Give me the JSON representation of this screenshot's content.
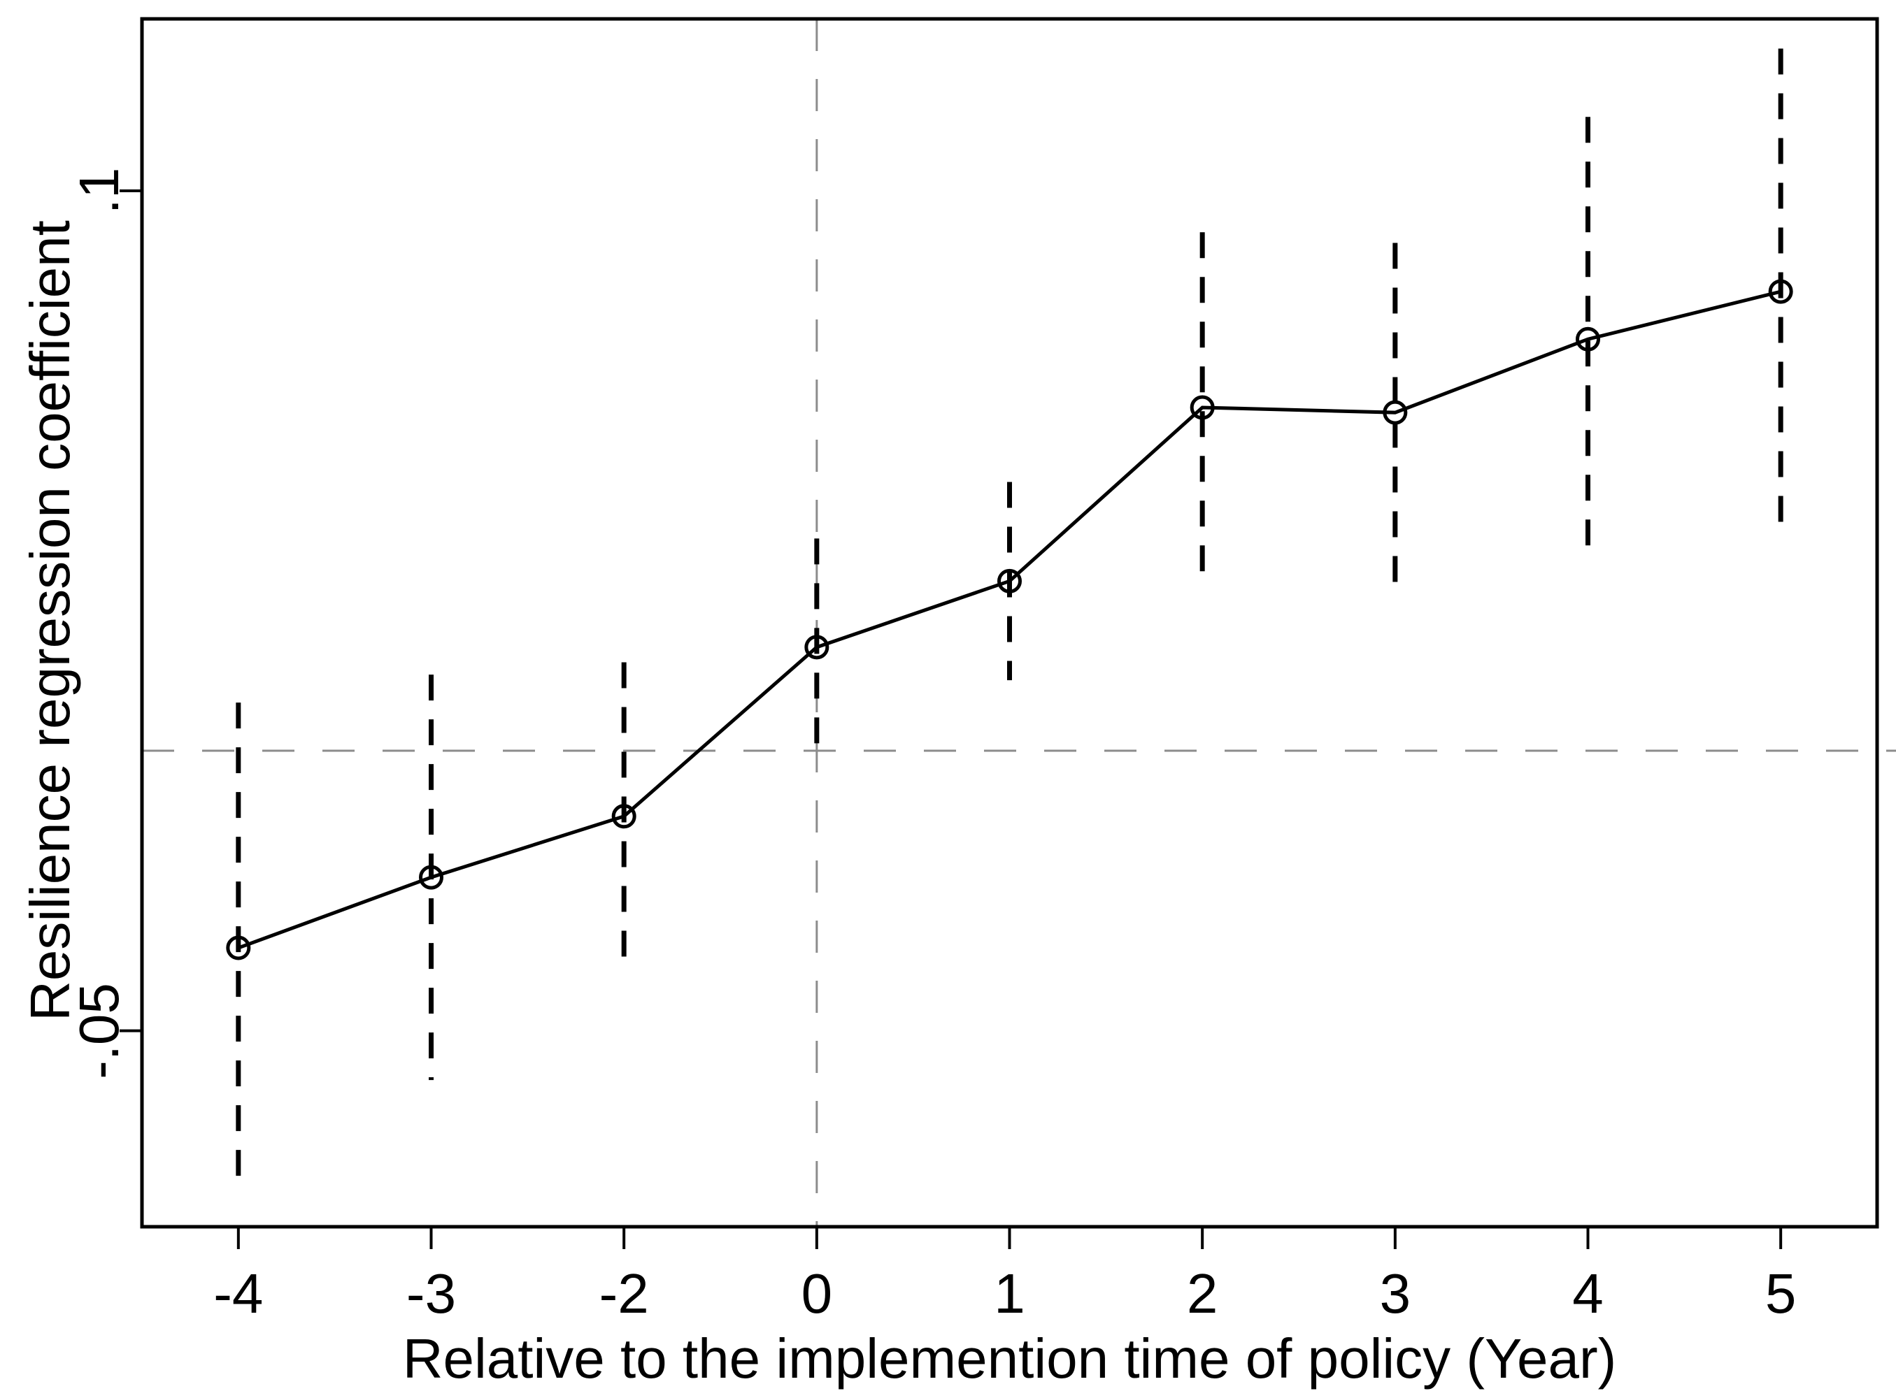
{
  "chart_data": {
    "type": "line",
    "title": "",
    "xlabel": "Relative to the implemention time of policy (Year)",
    "ylabel": "Resilience regression coefficient",
    "categories": [
      "-4",
      "-3",
      "-2",
      "0",
      "1",
      "2",
      "3",
      "4",
      "5"
    ],
    "series": [
      {
        "name": "Resilience regression coefficient",
        "values": [
          -0.0352,
          -0.0226,
          -0.0117,
          0.0185,
          0.0303,
          0.0613,
          0.0604,
          0.0735,
          0.082
        ]
      }
    ],
    "ci_low": [
      -0.079,
      -0.0588,
      -0.0392,
      -0.0009,
      0.0126,
      0.03,
      0.0301,
      0.0338,
      0.0386
    ],
    "ci_high": [
      0.0086,
      0.0136,
      0.0158,
      0.0379,
      0.048,
      0.0926,
      0.0907,
      0.1132,
      0.1254
    ],
    "y_ticks": [
      {
        "value": 0.1,
        "label": ".1"
      },
      {
        "value": -0.05,
        "label": "-.05"
      }
    ],
    "ylim": [
      -0.085,
      0.1307
    ],
    "reference_lines": {
      "horizontal_value": 0,
      "vertical_category": "0"
    },
    "marker": "open-circle",
    "ci_style": "dashed",
    "grid": false,
    "legend_position": "none",
    "colors": {
      "series": "#000000",
      "reference": "#8c8c8c",
      "background": "#ffffff",
      "text": "#000000"
    }
  }
}
